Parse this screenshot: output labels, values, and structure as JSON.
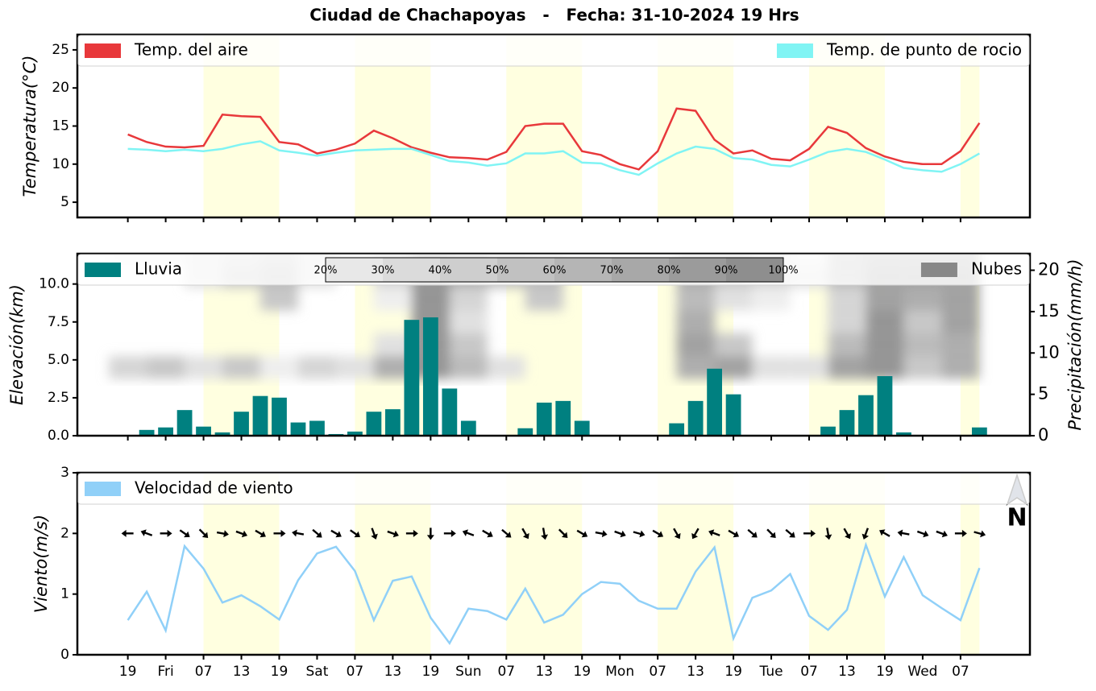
{
  "title": "Ciudad de Chachapoyas   -   Fecha: 31-10-2024 19 Hrs",
  "north_label": "N",
  "chart_data": [
    {
      "type": "line",
      "ylabel": "Temperatura(°C)",
      "x": [
        0,
        3,
        6,
        9,
        12,
        15,
        18,
        21,
        24,
        27,
        30,
        33,
        36,
        39,
        42,
        45,
        48,
        51,
        54,
        57,
        60,
        63,
        66,
        69,
        72,
        75,
        78,
        81,
        84,
        87,
        90,
        93,
        96,
        99,
        102,
        105,
        108,
        111,
        114,
        117,
        120,
        123,
        126,
        129,
        132,
        135
      ],
      "xlim": [
        -8,
        143
      ],
      "xticks": [
        0,
        6,
        12,
        18,
        24,
        30,
        36,
        42,
        48,
        54,
        60,
        66,
        72,
        78,
        84,
        90,
        96,
        102,
        108,
        114,
        120,
        126,
        132
      ],
      "ylim": [
        3,
        27
      ],
      "yticks": [
        5,
        10,
        15,
        20,
        25
      ],
      "shaded_spans": [
        [
          12,
          24
        ],
        [
          36,
          48
        ],
        [
          60,
          72
        ],
        [
          84,
          96
        ],
        [
          108,
          120
        ],
        [
          132,
          135
        ]
      ],
      "shade_color": "#ffffe0",
      "series": [
        {
          "name": "Temp. del aire",
          "color": "#e8383b",
          "values": [
            13.9,
            12.9,
            12.3,
            12.2,
            12.4,
            16.5,
            16.3,
            16.2,
            12.9,
            12.6,
            11.4,
            11.9,
            12.7,
            14.4,
            13.4,
            12.2,
            11.5,
            10.9,
            10.8,
            10.6,
            11.6,
            15.0,
            15.3,
            15.3,
            11.7,
            11.2,
            10.0,
            9.3,
            11.7,
            17.3,
            17.0,
            13.2,
            11.4,
            11.8,
            10.7,
            10.5,
            12.0,
            14.9,
            14.1,
            12.1,
            11.0,
            10.3,
            10.0,
            10.0,
            11.7,
            15.4
          ]
        },
        {
          "name": "Temp. de punto de rocio",
          "color": "#80f4f4",
          "values": [
            12.0,
            11.9,
            11.7,
            11.9,
            11.7,
            12.0,
            12.6,
            13.0,
            11.8,
            11.5,
            11.1,
            11.5,
            11.8,
            11.9,
            12.0,
            12.0,
            11.2,
            10.4,
            10.2,
            9.8,
            10.1,
            11.4,
            11.4,
            11.7,
            10.2,
            10.1,
            9.2,
            8.6,
            10.1,
            11.4,
            12.3,
            12.0,
            10.8,
            10.6,
            9.9,
            9.7,
            10.6,
            11.6,
            12.0,
            11.6,
            10.6,
            9.5,
            9.2,
            9.0,
            10.0,
            11.4
          ]
        }
      ]
    },
    {
      "type": "bar",
      "ylabel": "Elevación(km)",
      "y2label": "Precipitación(mm/h)",
      "x": [
        0,
        3,
        6,
        9,
        12,
        15,
        18,
        21,
        24,
        27,
        30,
        33,
        36,
        39,
        42,
        45,
        48,
        51,
        54,
        57,
        60,
        63,
        66,
        69,
        72,
        75,
        78,
        81,
        84,
        87,
        90,
        93,
        96,
        99,
        102,
        105,
        108,
        111,
        114,
        117,
        120,
        123,
        126,
        129,
        132,
        135
      ],
      "xlim": [
        -8,
        143
      ],
      "xticks": [
        0,
        6,
        12,
        18,
        24,
        30,
        36,
        42,
        48,
        54,
        60,
        66,
        72,
        78,
        84,
        90,
        96,
        102,
        108,
        114,
        120,
        126,
        132
      ],
      "ylim": [
        0,
        12
      ],
      "yticks": [
        {
          "value": 0,
          "label": "0.0"
        },
        {
          "value": 2.5,
          "label": "2.5"
        },
        {
          "value": 5,
          "label": "5.0"
        },
        {
          "value": 7.5,
          "label": "7.5"
        },
        {
          "value": 10,
          "label": "10.0"
        }
      ],
      "y2lim": [
        0,
        22
      ],
      "y2ticks": [
        0,
        5,
        10,
        15,
        20
      ],
      "shaded_spans": [
        [
          12,
          24
        ],
        [
          36,
          48
        ],
        [
          60,
          72
        ],
        [
          84,
          96
        ],
        [
          108,
          120
        ],
        [
          132,
          135
        ]
      ],
      "shade_color": "#ffffe0",
      "series": [
        {
          "name": "Lluvia",
          "color": "#008080",
          "axis": "y2",
          "values": [
            0,
            0.7,
            1.0,
            3.1,
            1.1,
            0.4,
            2.9,
            4.8,
            4.6,
            1.6,
            1.8,
            0.2,
            0.5,
            2.9,
            3.2,
            14.0,
            14.3,
            5.7,
            1.8,
            0,
            0,
            0.9,
            4.0,
            4.2,
            1.8,
            0,
            0,
            0,
            0,
            1.5,
            4.2,
            8.1,
            5.0,
            0.1,
            0,
            0,
            0,
            1.1,
            3.1,
            4.9,
            7.2,
            0.4,
            0,
            0,
            0,
            1.0
          ]
        }
      ],
      "clouds": {
        "name": "Nubes",
        "color": "#888888",
        "x": [
          0,
          6,
          12,
          18,
          24,
          30,
          36,
          42,
          48,
          54,
          60,
          66,
          72,
          78,
          84,
          90,
          96,
          102,
          108,
          114,
          120,
          126,
          132
        ],
        "levels": [
          4.5,
          6,
          7.5,
          9,
          10.5,
          12
        ],
        "values": [
          [
            40,
            0,
            0,
            0,
            0,
            20
          ],
          [
            50,
            0,
            0,
            0,
            0,
            20
          ],
          [
            30,
            0,
            0,
            0,
            30,
            30
          ],
          [
            50,
            0,
            0,
            0,
            50,
            40
          ],
          [
            20,
            0,
            0,
            50,
            60,
            50
          ],
          [
            40,
            0,
            0,
            0,
            30,
            30
          ],
          [
            30,
            0,
            0,
            0,
            0,
            20
          ],
          [
            70,
            30,
            0,
            20,
            40,
            40
          ],
          [
            90,
            90,
            90,
            90,
            90,
            80
          ],
          [
            60,
            50,
            30,
            40,
            70,
            70
          ],
          [
            30,
            0,
            0,
            0,
            60,
            50
          ],
          [
            0,
            0,
            0,
            50,
            60,
            40
          ],
          [
            0,
            0,
            0,
            0,
            0,
            20
          ],
          [
            0,
            0,
            0,
            0,
            0,
            0
          ],
          [
            0,
            0,
            0,
            0,
            0,
            20
          ],
          [
            70,
            80,
            70,
            60,
            70,
            50
          ],
          [
            80,
            50,
            0,
            30,
            50,
            50
          ],
          [
            30,
            0,
            0,
            20,
            40,
            30
          ],
          [
            30,
            0,
            0,
            0,
            30,
            20
          ],
          [
            80,
            60,
            40,
            40,
            60,
            60
          ],
          [
            90,
            90,
            90,
            80,
            80,
            70
          ],
          [
            50,
            60,
            50,
            70,
            80,
            70
          ],
          [
            70,
            70,
            80,
            80,
            80,
            70
          ]
        ],
        "colorbar_ticks": [
          {
            "value": 20,
            "label": "20%"
          },
          {
            "value": 30,
            "label": "30%"
          },
          {
            "value": 40,
            "label": "40%"
          },
          {
            "value": 50,
            "label": "50%"
          },
          {
            "value": 60,
            "label": "60%"
          },
          {
            "value": 70,
            "label": "70%"
          },
          {
            "value": 80,
            "label": "80%"
          },
          {
            "value": 90,
            "label": "90%"
          },
          {
            "value": 100,
            "label": "100%"
          }
        ]
      }
    },
    {
      "type": "line",
      "ylabel": "Viento(m/s)",
      "x": [
        0,
        3,
        6,
        9,
        12,
        15,
        18,
        21,
        24,
        27,
        30,
        33,
        36,
        39,
        42,
        45,
        48,
        51,
        54,
        57,
        60,
        63,
        66,
        69,
        72,
        75,
        78,
        81,
        84,
        87,
        90,
        93,
        96,
        99,
        102,
        105,
        108,
        111,
        114,
        117,
        120,
        123,
        126,
        129,
        132,
        135
      ],
      "xlim": [
        -8,
        143
      ],
      "xticks": [
        {
          "value": 0,
          "label": "19"
        },
        {
          "value": 6,
          "label": "Fri"
        },
        {
          "value": 12,
          "label": "07"
        },
        {
          "value": 18,
          "label": "13"
        },
        {
          "value": 24,
          "label": "19"
        },
        {
          "value": 30,
          "label": "Sat"
        },
        {
          "value": 36,
          "label": "07"
        },
        {
          "value": 42,
          "label": "13"
        },
        {
          "value": 48,
          "label": "19"
        },
        {
          "value": 54,
          "label": "Sun"
        },
        {
          "value": 60,
          "label": "07"
        },
        {
          "value": 66,
          "label": "13"
        },
        {
          "value": 72,
          "label": "19"
        },
        {
          "value": 78,
          "label": "Mon"
        },
        {
          "value": 84,
          "label": "07"
        },
        {
          "value": 90,
          "label": "13"
        },
        {
          "value": 96,
          "label": "19"
        },
        {
          "value": 102,
          "label": "Tue"
        },
        {
          "value": 108,
          "label": "07"
        },
        {
          "value": 114,
          "label": "13"
        },
        {
          "value": 120,
          "label": "19"
        },
        {
          "value": 126,
          "label": "Wed"
        },
        {
          "value": 132,
          "label": "07"
        }
      ],
      "ylim": [
        0,
        3
      ],
      "yticks": [
        0,
        1,
        2,
        3
      ],
      "shaded_spans": [
        [
          12,
          24
        ],
        [
          36,
          48
        ],
        [
          60,
          72
        ],
        [
          84,
          96
        ],
        [
          108,
          120
        ],
        [
          132,
          135
        ]
      ],
      "shade_color": "#ffffe0",
      "series": [
        {
          "name": "Velocidad de viento",
          "color": "#90d0f8",
          "values": [
            0.57,
            1.04,
            0.4,
            1.79,
            1.42,
            0.86,
            0.98,
            0.8,
            0.58,
            1.23,
            1.67,
            1.78,
            1.38,
            0.57,
            1.22,
            1.29,
            0.61,
            0.19,
            0.76,
            0.72,
            0.58,
            1.09,
            0.53,
            0.66,
            1.0,
            1.2,
            1.17,
            0.89,
            0.76,
            0.76,
            1.37,
            1.77,
            0.27,
            0.94,
            1.06,
            1.33,
            0.64,
            0.41,
            0.74,
            1.81,
            0.96,
            1.61,
            0.98,
            0.77,
            0.57,
            1.43
          ]
        }
      ],
      "wind_arrows": {
        "y": 2,
        "direction": [
          180,
          200,
          0,
          35,
          45,
          10,
          20,
          30,
          0,
          190,
          40,
          30,
          35,
          70,
          20,
          0,
          90,
          0,
          200,
          30,
          40,
          60,
          80,
          45,
          30,
          10,
          20,
          15,
          30,
          60,
          120,
          200,
          30,
          40,
          45,
          40,
          0,
          80,
          60,
          110,
          210,
          190,
          20,
          20,
          0,
          15
        ]
      }
    }
  ]
}
